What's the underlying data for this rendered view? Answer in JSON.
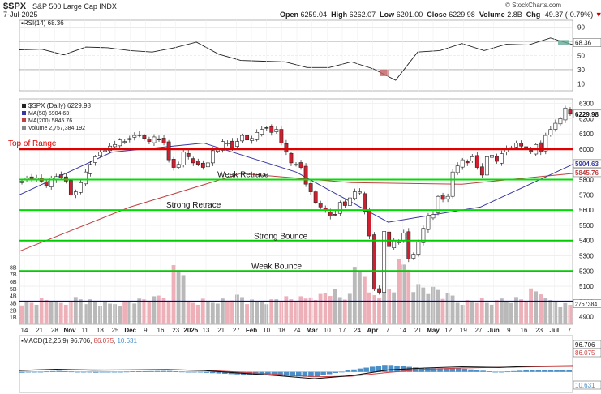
{
  "header": {
    "symbol": "$SPX",
    "name": "S&P 500 Large Cap INDX",
    "date": "7-Jul-2025",
    "open_label": "Open",
    "open": "6259.04",
    "high_label": "High",
    "high": "6262.07",
    "low_label": "Low",
    "low": "6201.00",
    "close_label": "Close",
    "close": "6229.98",
    "volume_label": "Volume",
    "volume": "2.8B",
    "chg_label": "Chg",
    "chg": "-49.37 (-0.79%)",
    "brand": "© StockCharts.com"
  },
  "rsi": {
    "label": "RSI(14) 68.36",
    "value_tag": "68.36",
    "axis": [
      "90",
      "70",
      "50",
      "30",
      "10"
    ]
  },
  "price": {
    "legend": [
      "$SPX (Daily) 6229.98",
      "MA(50) 5904.63",
      "MA(200) 5845.76",
      "Volume 2,757,384,192"
    ],
    "tags": {
      "close": "6229.98",
      "ma50": "5904.63",
      "ma200": "5845.76",
      "volume": "2757384"
    },
    "axis": [
      "6300",
      "6200",
      "6100",
      "6000",
      "5900",
      "5800",
      "5700",
      "5600",
      "5500",
      "5400",
      "5300",
      "5200",
      "5100",
      "5000",
      "4900"
    ],
    "volume_axis": [
      "8B",
      "7B",
      "6B",
      "5B",
      "4B",
      "3B",
      "2B",
      "1B"
    ]
  },
  "annotations": [
    {
      "label": "Top of Range",
      "level": 6000,
      "color": "#e00000"
    },
    {
      "label": "Weak Retrace",
      "level": 5800,
      "color": "#00dd00"
    },
    {
      "label": "Strong Retrace",
      "level": 5600,
      "color": "#00dd00"
    },
    {
      "label": "Strong Bounce",
      "level": 5400,
      "color": "#00cc00"
    },
    {
      "label": "Weak Bounce",
      "level": 5200,
      "color": "#00cc00"
    },
    {
      "label": "",
      "level": 5000,
      "color": "#0000cc"
    }
  ],
  "x_axis": [
    "14",
    "21",
    "28",
    "Nov",
    "11",
    "18",
    "25",
    "Dec",
    "9",
    "16",
    "23",
    "2025",
    "13",
    "21",
    "27",
    "Feb",
    "10",
    "18",
    "24",
    "Mar",
    "10",
    "17",
    "24",
    "Apr",
    "7",
    "14",
    "21",
    "May",
    "12",
    "19",
    "27",
    "Jun",
    "9",
    "16",
    "23",
    "Jul",
    "7"
  ],
  "macd": {
    "label_prefix": "MACD(12,26,9)",
    "macd": "96.706",
    "signal": "86.075",
    "hist": "10.631",
    "tags": [
      "96.706",
      "86.075",
      "10.631"
    ]
  },
  "chart_data": {
    "type": "candlestick",
    "title": "$SPX S&P 500 Large Cap INDX",
    "ylim": [
      4850,
      6330
    ],
    "series": [
      {
        "name": "$SPX (Daily)",
        "close": [
          5790,
          5810,
          5800,
          5810,
          5790,
          5760,
          5810,
          5820,
          5810,
          5790,
          5700,
          5720,
          5780,
          5850,
          5900,
          5950,
          5980,
          5990,
          6020,
          6030,
          6060,
          6050,
          6070,
          6090,
          6090,
          6070,
          6050,
          6080,
          6060,
          6040,
          5930,
          5880,
          5900,
          5980,
          5950,
          5910,
          5900,
          5880,
          5910,
          5990,
          6000,
          6050,
          6040,
          6010,
          6050,
          6090,
          6060,
          6070,
          6110,
          6130,
          6140,
          6110,
          6130,
          6040,
          5980,
          5910,
          5900,
          5880,
          5770,
          5720,
          5650,
          5620,
          5600,
          5560,
          5570,
          5650,
          5630,
          5680,
          5720,
          5720,
          5590,
          5430,
          5080,
          5060,
          5460,
          5360,
          5400,
          5390,
          5450,
          5280,
          5310,
          5390,
          5480,
          5560,
          5570,
          5690,
          5670,
          5690,
          5850,
          5890,
          5930,
          5910,
          5950,
          5880,
          5830,
          5950,
          5960,
          5920,
          5970,
          6000,
          6010,
          6040,
          6020,
          6000,
          5980,
          6030,
          5980,
          6090,
          6130,
          6170,
          6200,
          6270,
          6230
        ]
      },
      {
        "name": "MA(50)",
        "values": [
          5700,
          5980,
          6040,
          5850,
          5520,
          5620,
          5900
        ]
      },
      {
        "name": "MA(200)",
        "values": [
          5330,
          5620,
          5840,
          5780,
          5770,
          5840
        ]
      },
      {
        "name": "Volume",
        "values": [
          3.1,
          3.4,
          2.9,
          3.6,
          3.2,
          2.8,
          3.0,
          3.3,
          3.5,
          3.9,
          7.8,
          3.0,
          3.2,
          3.4,
          3.8,
          3.1,
          3.3,
          3.6,
          3.5,
          4.0,
          4.5,
          3.8,
          7.8,
          4.2,
          4.9,
          8.1,
          5.3,
          4.8,
          3.9,
          3.2,
          3.4,
          3.0,
          3.5,
          3.6,
          4.6,
          3.3,
          2.8
        ]
      },
      {
        "name": "RSI(14)",
        "values": [
          55,
          62,
          48,
          65,
          58,
          60,
          52,
          64,
          66,
          55,
          40,
          45,
          38,
          36,
          30,
          44,
          28,
          18,
          52,
          60,
          64,
          60,
          63,
          68,
          72,
          68.36
        ]
      },
      {
        "name": "MACD(12,26,9)",
        "values": [
          20,
          40,
          25,
          30,
          35,
          20,
          -20,
          -60,
          -110,
          -60,
          30,
          60,
          80,
          70,
          90,
          96.706
        ]
      },
      {
        "name": "Signal",
        "values": [
          25,
          35,
          30,
          28,
          30,
          25,
          -5,
          -40,
          -80,
          -70,
          -10,
          40,
          60,
          72,
          80,
          86.075
        ]
      }
    ]
  }
}
